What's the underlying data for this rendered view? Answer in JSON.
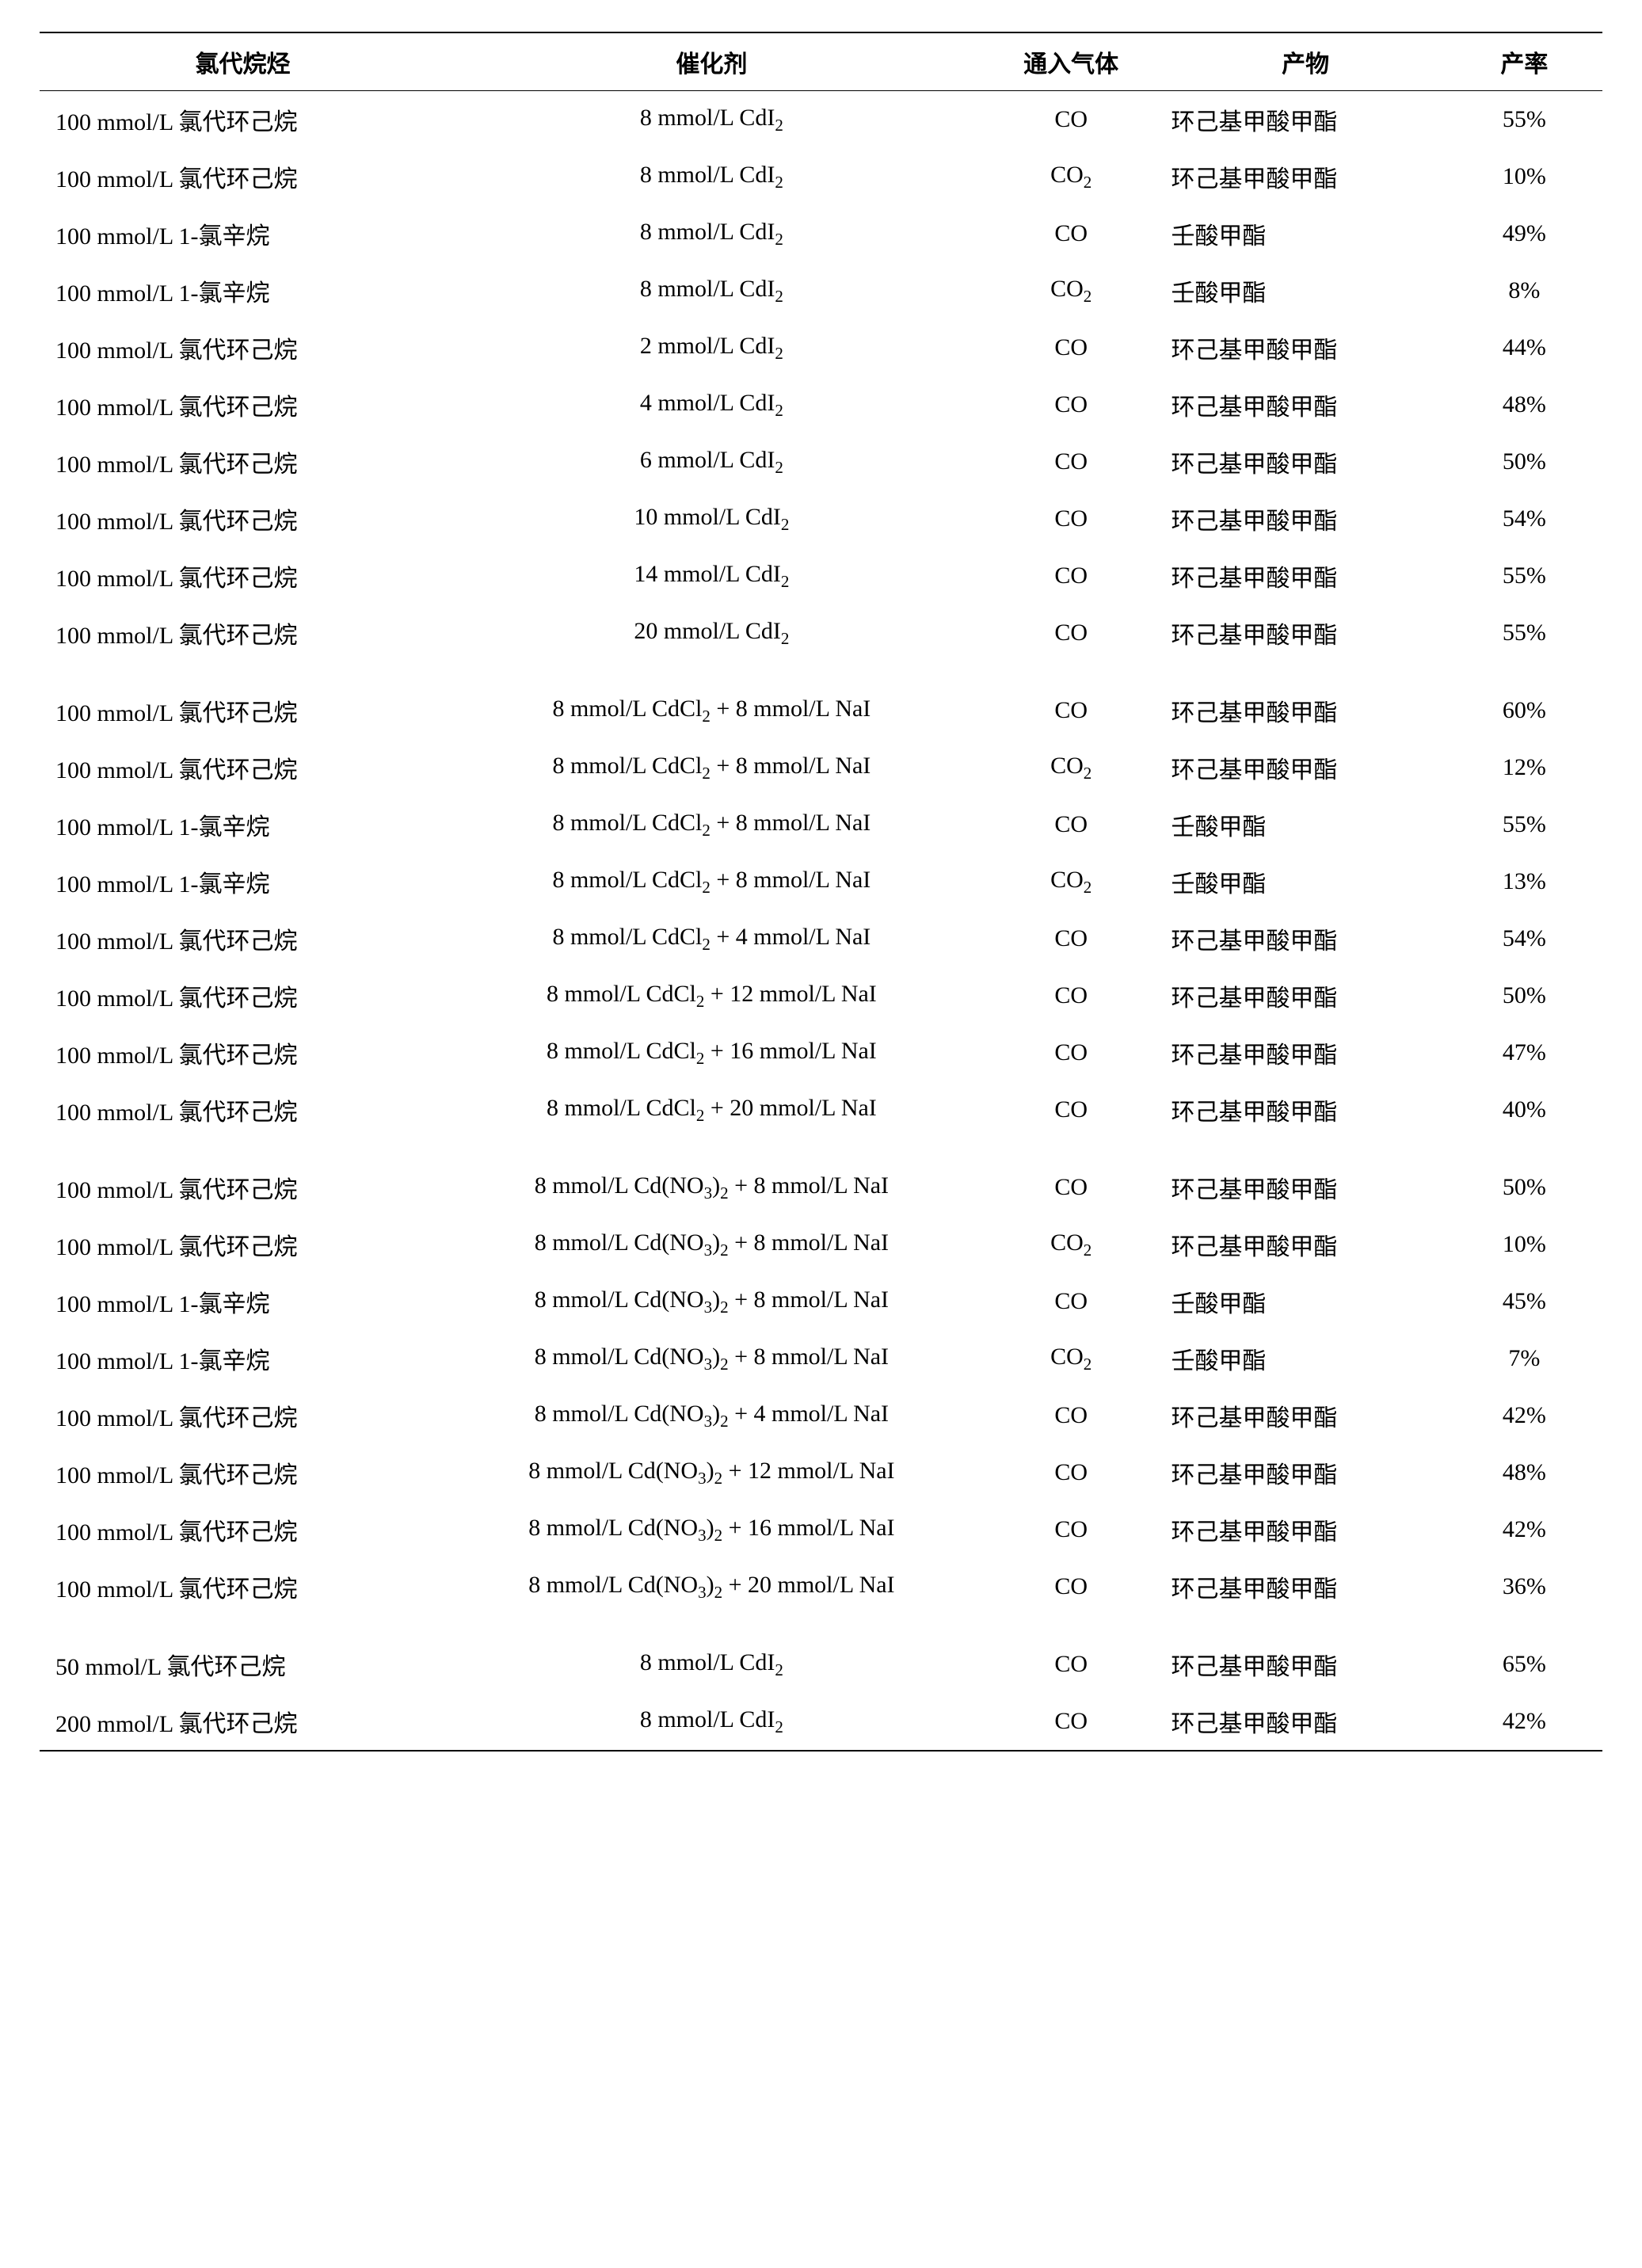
{
  "table": {
    "columns": [
      "氯代烷烃",
      "催化剂",
      "通入气体",
      "产物",
      "产率"
    ],
    "column_widths_pct": [
      26,
      34,
      12,
      18,
      10
    ],
    "header_fontsize_pt": 15,
    "cell_fontsize_pt": 15,
    "border_color": "#000000",
    "background_color": "#ffffff",
    "text_color": "#000000",
    "group_gap_rows": [
      10,
      18,
      26
    ],
    "rows": [
      {
        "substrate": "100 mmol/L 氯代环己烷",
        "catalyst": "8 mmol/L CdI_2",
        "gas": "CO",
        "product": "环己基甲酸甲酯",
        "yield": "55%"
      },
      {
        "substrate": "100 mmol/L 氯代环己烷",
        "catalyst": "8 mmol/L CdI_2",
        "gas": "CO_2",
        "product": "环己基甲酸甲酯",
        "yield": "10%"
      },
      {
        "substrate": "100 mmol/L 1-氯辛烷",
        "catalyst": "8 mmol/L CdI_2",
        "gas": "CO",
        "product": "壬酸甲酯",
        "yield": "49%"
      },
      {
        "substrate": "100 mmol/L 1-氯辛烷",
        "catalyst": "8 mmol/L CdI_2",
        "gas": "CO_2",
        "product": "壬酸甲酯",
        "yield": "8%"
      },
      {
        "substrate": "100 mmol/L 氯代环己烷",
        "catalyst": "2 mmol/L CdI_2",
        "gas": "CO",
        "product": "环己基甲酸甲酯",
        "yield": "44%"
      },
      {
        "substrate": "100 mmol/L 氯代环己烷",
        "catalyst": "4 mmol/L CdI_2",
        "gas": "CO",
        "product": "环己基甲酸甲酯",
        "yield": "48%"
      },
      {
        "substrate": "100 mmol/L 氯代环己烷",
        "catalyst": "6 mmol/L CdI_2",
        "gas": "CO",
        "product": "环己基甲酸甲酯",
        "yield": "50%"
      },
      {
        "substrate": "100 mmol/L 氯代环己烷",
        "catalyst": "10 mmol/L CdI_2",
        "gas": "CO",
        "product": "环己基甲酸甲酯",
        "yield": "54%"
      },
      {
        "substrate": "100 mmol/L 氯代环己烷",
        "catalyst": "14 mmol/L CdI_2",
        "gas": "CO",
        "product": "环己基甲酸甲酯",
        "yield": "55%"
      },
      {
        "substrate": "100 mmol/L 氯代环己烷",
        "catalyst": "20 mmol/L CdI_2",
        "gas": "CO",
        "product": "环己基甲酸甲酯",
        "yield": "55%"
      },
      {
        "substrate": "100 mmol/L 氯代环己烷",
        "catalyst": "8 mmol/L CdCl_2 + 8 mmol/L NaI",
        "gas": "CO",
        "product": "环己基甲酸甲酯",
        "yield": "60%"
      },
      {
        "substrate": "100 mmol/L 氯代环己烷",
        "catalyst": "8 mmol/L CdCl_2 + 8 mmol/L NaI",
        "gas": "CO_2",
        "product": "环己基甲酸甲酯",
        "yield": "12%"
      },
      {
        "substrate": "100 mmol/L 1-氯辛烷",
        "catalyst": "8 mmol/L CdCl_2 + 8 mmol/L NaI",
        "gas": "CO",
        "product": "壬酸甲酯",
        "yield": "55%"
      },
      {
        "substrate": "100 mmol/L 1-氯辛烷",
        "catalyst": "8 mmol/L CdCl_2 + 8 mmol/L NaI",
        "gas": "CO_2",
        "product": "壬酸甲酯",
        "yield": "13%"
      },
      {
        "substrate": "100 mmol/L 氯代环己烷",
        "catalyst": "8 mmol/L CdCl_2 + 4 mmol/L NaI",
        "gas": "CO",
        "product": "环己基甲酸甲酯",
        "yield": "54%"
      },
      {
        "substrate": "100 mmol/L 氯代环己烷",
        "catalyst": "8 mmol/L CdCl_2 + 12 mmol/L NaI",
        "gas": "CO",
        "product": "环己基甲酸甲酯",
        "yield": "50%"
      },
      {
        "substrate": "100 mmol/L 氯代环己烷",
        "catalyst": "8 mmol/L CdCl_2 + 16 mmol/L NaI",
        "gas": "CO",
        "product": "环己基甲酸甲酯",
        "yield": "47%"
      },
      {
        "substrate": "100 mmol/L 氯代环己烷",
        "catalyst": "8 mmol/L CdCl_2 + 20 mmol/L NaI",
        "gas": "CO",
        "product": "环己基甲酸甲酯",
        "yield": "40%"
      },
      {
        "substrate": "100 mmol/L 氯代环己烷",
        "catalyst": "8 mmol/L Cd(NO_3)_2 + 8 mmol/L NaI",
        "gas": "CO",
        "product": "环己基甲酸甲酯",
        "yield": "50%"
      },
      {
        "substrate": "100 mmol/L 氯代环己烷",
        "catalyst": "8 mmol/L Cd(NO_3)_2 + 8 mmol/L NaI",
        "gas": "CO_2",
        "product": "环己基甲酸甲酯",
        "yield": "10%"
      },
      {
        "substrate": "100 mmol/L 1-氯辛烷",
        "catalyst": "8 mmol/L Cd(NO_3)_2 + 8 mmol/L NaI",
        "gas": "CO",
        "product": "壬酸甲酯",
        "yield": "45%"
      },
      {
        "substrate": "100 mmol/L 1-氯辛烷",
        "catalyst": "8 mmol/L Cd(NO_3)_2 + 8 mmol/L NaI",
        "gas": "CO_2",
        "product": "壬酸甲酯",
        "yield": "7%"
      },
      {
        "substrate": "100 mmol/L 氯代环己烷",
        "catalyst": "8 mmol/L Cd(NO_3)_2 + 4 mmol/L NaI",
        "gas": "CO",
        "product": "环己基甲酸甲酯",
        "yield": "42%"
      },
      {
        "substrate": "100 mmol/L 氯代环己烷",
        "catalyst": "8 mmol/L Cd(NO_3)_2 + 12 mmol/L NaI",
        "gas": "CO",
        "product": "环己基甲酸甲酯",
        "yield": "48%"
      },
      {
        "substrate": "100 mmol/L 氯代环己烷",
        "catalyst": "8 mmol/L Cd(NO_3)_2 + 16 mmol/L NaI",
        "gas": "CO",
        "product": "环己基甲酸甲酯",
        "yield": "42%"
      },
      {
        "substrate": "100 mmol/L 氯代环己烷",
        "catalyst": "8 mmol/L Cd(NO_3)_2 + 20 mmol/L NaI",
        "gas": "CO",
        "product": "环己基甲酸甲酯",
        "yield": "36%"
      },
      {
        "substrate": "50 mmol/L 氯代环己烷",
        "catalyst": "8 mmol/L CdI_2",
        "gas": "CO",
        "product": "环己基甲酸甲酯",
        "yield": "65%"
      },
      {
        "substrate": "200 mmol/L 氯代环己烷",
        "catalyst": "8 mmol/L CdI_2",
        "gas": "CO",
        "product": "环己基甲酸甲酯",
        "yield": "42%"
      }
    ]
  }
}
